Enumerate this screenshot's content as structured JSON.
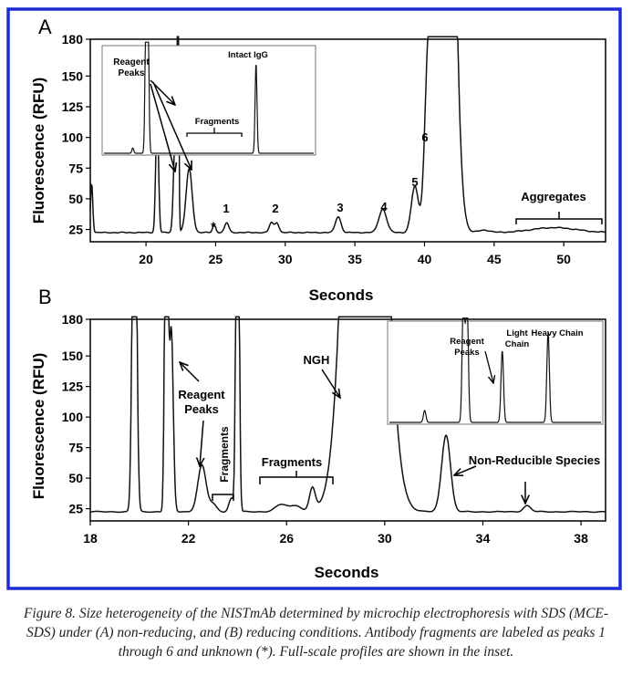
{
  "chart_data": [
    {
      "panel": "A",
      "type": "line",
      "xlabel": "Seconds",
      "ylabel": "Fluorescence (RFU)",
      "xlim": [
        16,
        53
      ],
      "ylim": [
        15,
        180
      ],
      "xticks": [
        20,
        25,
        30,
        35,
        40,
        45,
        50
      ],
      "yticks": [
        25,
        50,
        75,
        100,
        125,
        150,
        180
      ],
      "baseline": 22.5,
      "peaks": [
        {
          "x": 16.1,
          "h": 40,
          "w": 0.08
        },
        {
          "x": 20.8,
          "h": 100,
          "w": 0.1
        },
        {
          "x": 22.1,
          "h": 80,
          "w": 0.12
        },
        {
          "x": 22.3,
          "h": 300,
          "w": 0.05
        },
        {
          "x": 23.1,
          "h": 52,
          "w": 0.22
        },
        {
          "x": 24.9,
          "h": 6,
          "w": 0.12
        },
        {
          "x": 25.8,
          "h": 8,
          "w": 0.15
        },
        {
          "x": 29.0,
          "h": 8,
          "w": 0.15
        },
        {
          "x": 29.4,
          "h": 8,
          "w": 0.15
        },
        {
          "x": 33.8,
          "h": 13,
          "w": 0.2
        },
        {
          "x": 37.0,
          "h": 19,
          "w": 0.28
        },
        {
          "x": 39.3,
          "h": 37,
          "w": 0.25
        },
        {
          "x": 40.2,
          "h": 77,
          "w": 0.22
        },
        {
          "x": 41.4,
          "h": 800,
          "w": 0.55
        },
        {
          "x": 44.3,
          "h": 2,
          "w": 0.4
        },
        {
          "x": 49.3,
          "h": 4,
          "w": 1.6
        }
      ],
      "annotations": [
        {
          "text": "1",
          "x": 25.8,
          "y": 40
        },
        {
          "text": "*",
          "x": 24.9,
          "y": 33
        },
        {
          "text": "2",
          "x": 29.3,
          "y": 40
        },
        {
          "text": "3",
          "x": 33.8,
          "y": 40
        },
        {
          "text": "4",
          "x": 37.0,
          "y": 46
        },
        {
          "text": "5",
          "x": 39.3,
          "y": 66
        },
        {
          "text": "6",
          "x": 40.2,
          "y": 105
        },
        {
          "text": "Aggregates",
          "x": 49.8,
          "y": 48
        }
      ],
      "inset": {
        "labels": [
          "Reagent Peaks",
          "Intact IgG",
          "Fragments"
        ],
        "peaks": [
          {
            "x": 0.55,
            "h": 0.05
          },
          {
            "x": 0.8,
            "h": 1.3
          },
          {
            "x": 0.84,
            "h": 1.3
          },
          {
            "x": 2.9,
            "h": 0.85
          }
        ]
      }
    },
    {
      "panel": "B",
      "type": "line",
      "xlabel": "Seconds",
      "ylabel": "Fluorescence (RFU)",
      "xlim": [
        18,
        39
      ],
      "ylim": [
        15,
        180
      ],
      "xticks": [
        18,
        22,
        26,
        30,
        34,
        38
      ],
      "yticks": [
        25,
        50,
        75,
        100,
        125,
        150,
        180
      ],
      "baseline": 22.5,
      "peaks": [
        {
          "x": 19.8,
          "h": 400,
          "w": 0.08
        },
        {
          "x": 21.1,
          "h": 400,
          "w": 0.06
        },
        {
          "x": 21.3,
          "h": 150,
          "w": 0.08
        },
        {
          "x": 22.55,
          "h": 38,
          "w": 0.17
        },
        {
          "x": 23.0,
          "h": 6,
          "w": 0.15
        },
        {
          "x": 23.75,
          "h": 11,
          "w": 0.1
        },
        {
          "x": 24.0,
          "h": 400,
          "w": 0.06
        },
        {
          "x": 25.8,
          "h": 6,
          "w": 0.25
        },
        {
          "x": 26.4,
          "h": 5,
          "w": 0.2
        },
        {
          "x": 27.05,
          "h": 19,
          "w": 0.12
        },
        {
          "x": 28.3,
          "h": 115,
          "w": 0.07
        },
        {
          "x": 29.2,
          "h": 800,
          "w": 0.6
        },
        {
          "x": 30.0,
          "h": 4,
          "w": 0.08
        },
        {
          "x": 32.5,
          "h": 63,
          "w": 0.18
        },
        {
          "x": 35.8,
          "h": 5,
          "w": 0.15
        }
      ],
      "annotations": [
        {
          "text": "Reagent Peaks",
          "x": 22.5,
          "y": 117
        },
        {
          "text": "Fragments",
          "x": 23.4,
          "y": 60
        },
        {
          "text": "Fragments",
          "x": 26.4,
          "y": 60
        },
        {
          "text": "NGH",
          "x": 27.9,
          "y": 148
        },
        {
          "text": "Non-Reducible Species",
          "x": 36.0,
          "y": 63
        }
      ],
      "inset": {
        "labels": [
          "Reagent Peaks",
          "Light Chain",
          "Heavy Chain"
        ],
        "peaks": [
          {
            "x": 0.5,
            "h": 0.12
          },
          {
            "x": 1.05,
            "h": 1.3
          },
          {
            "x": 1.1,
            "h": 1.3
          },
          {
            "x": 1.6,
            "h": 0.72
          },
          {
            "x": 2.25,
            "h": 0.9
          }
        ]
      }
    }
  ],
  "labels": {
    "panel_a": "A",
    "panel_b": "B",
    "num_1": "1",
    "num_2": "2",
    "num_3": "3",
    "num_4": "4",
    "num_5": "5",
    "num_6": "6",
    "star": "*",
    "aggregates": "Aggregates",
    "inset_a_reagent_1": "Reagent",
    "inset_a_reagent_2": "Peaks",
    "inset_a_intact": "Intact IgG",
    "inset_a_fragments": "Fragments",
    "b_reagent_1": "Reagent",
    "b_reagent_2": "Peaks",
    "b_fragments_vertical": "Fragments",
    "b_fragments": "Fragments",
    "b_ngh": "NGH",
    "b_nonreducible": "Non-Reducible Species",
    "inset_b_reagent_1": "Reagent",
    "inset_b_reagent_2": "Peaks",
    "inset_b_light_1": "Light",
    "inset_b_light_2": "Chain",
    "inset_b_heavy": "Heavy Chain",
    "xlabel_a": "Seconds",
    "xlabel_b": "Seconds",
    "ylabel_a": "Fluorescence (RFU)",
    "ylabel_b": "Fluorescence (RFU)"
  },
  "caption": "Figure 8. Size heterogeneity of the NISTmAb determined by microchip electrophoresis with SDS (MCE-SDS) under (A) non-reducing, and (B) reducing conditions. Antibody fragments are labeled as peaks 1 through 6 and unknown (*). Full-scale profiles are shown in the inset.",
  "colors": {
    "frame": "#1f2bd6",
    "trace": "#111111"
  }
}
